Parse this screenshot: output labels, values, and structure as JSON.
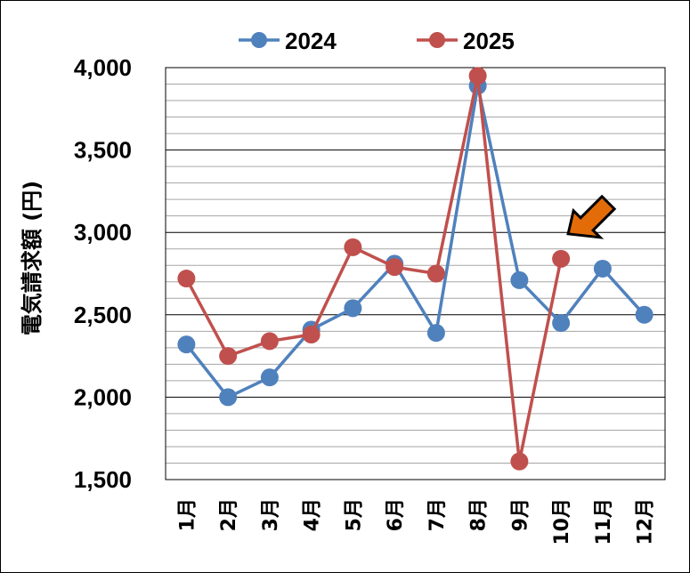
{
  "chart_data": {
    "type": "line",
    "title": "",
    "xlabel": "",
    "ylabel": "電気請求額 (円)",
    "categories": [
      "1月",
      "2月",
      "3月",
      "4月",
      "5月",
      "6月",
      "7月",
      "8月",
      "9月",
      "10月",
      "11月",
      "12月"
    ],
    "ylim": [
      1500,
      4000
    ],
    "yticks": [
      1500,
      2000,
      2500,
      3000,
      3500,
      4000
    ],
    "ytick_labels": [
      "1,500",
      "2,000",
      "2,500",
      "3,000",
      "3,500",
      "4,000"
    ],
    "minor_gridline_step": 100,
    "grid": true,
    "legend_position": "top",
    "series": [
      {
        "name": "2024",
        "color": "#4F81BD",
        "values": [
          2320,
          2000,
          2120,
          2410,
          2540,
          2810,
          2390,
          3890,
          2710,
          2450,
          2780,
          2500
        ]
      },
      {
        "name": "2025",
        "color": "#C0504D",
        "values": [
          2720,
          2250,
          2340,
          2380,
          2910,
          2790,
          2750,
          3950,
          1610,
          2840,
          null,
          null
        ]
      }
    ],
    "annotation": {
      "type": "arrow",
      "target_category": "10月",
      "target_series": "2025",
      "color": "#E36C09",
      "icon": "down-left-arrow"
    }
  }
}
